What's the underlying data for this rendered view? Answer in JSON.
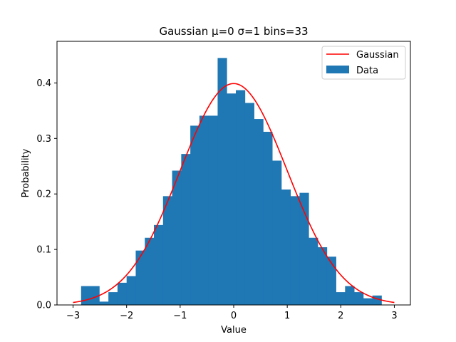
{
  "chart_data": {
    "type": "bar",
    "title": "Gaussian   μ=0   σ=1   bins=33",
    "xlabel": "Value",
    "ylabel": "Probability",
    "xlim": [
      -3.3,
      3.3
    ],
    "ylim": [
      0,
      0.475
    ],
    "xticks": [
      -3,
      -2,
      -1,
      0,
      1,
      2,
      3
    ],
    "xtick_labels": [
      "−3",
      "−2",
      "−1",
      "0",
      "1",
      "2",
      "3"
    ],
    "yticks": [
      0,
      0.1,
      0.2,
      0.3,
      0.4
    ],
    "ytick_labels": [
      "0.0",
      "0.1",
      "0.2",
      "0.3",
      "0.4"
    ],
    "grid": false,
    "legend_position": "top-right",
    "bins": {
      "start": -2.85,
      "width": 0.17,
      "values": [
        0.034,
        0.034,
        0.006,
        0.023,
        0.04,
        0.052,
        0.098,
        0.121,
        0.144,
        0.196,
        0.242,
        0.272,
        0.323,
        0.341,
        0.341,
        0.445,
        0.381,
        0.387,
        0.364,
        0.335,
        0.312,
        0.26,
        0.208,
        0.196,
        0.202,
        0.121,
        0.104,
        0.087,
        0.023,
        0.034,
        0.023,
        0.012,
        0.017
      ]
    },
    "series": [
      {
        "name": "Gaussian",
        "kind": "line",
        "mu": 0,
        "sigma": 1,
        "x_range": [
          -3,
          3
        ],
        "color": "#ff0000"
      },
      {
        "name": "Data",
        "kind": "histogram",
        "color": "#1f77b4"
      }
    ]
  }
}
